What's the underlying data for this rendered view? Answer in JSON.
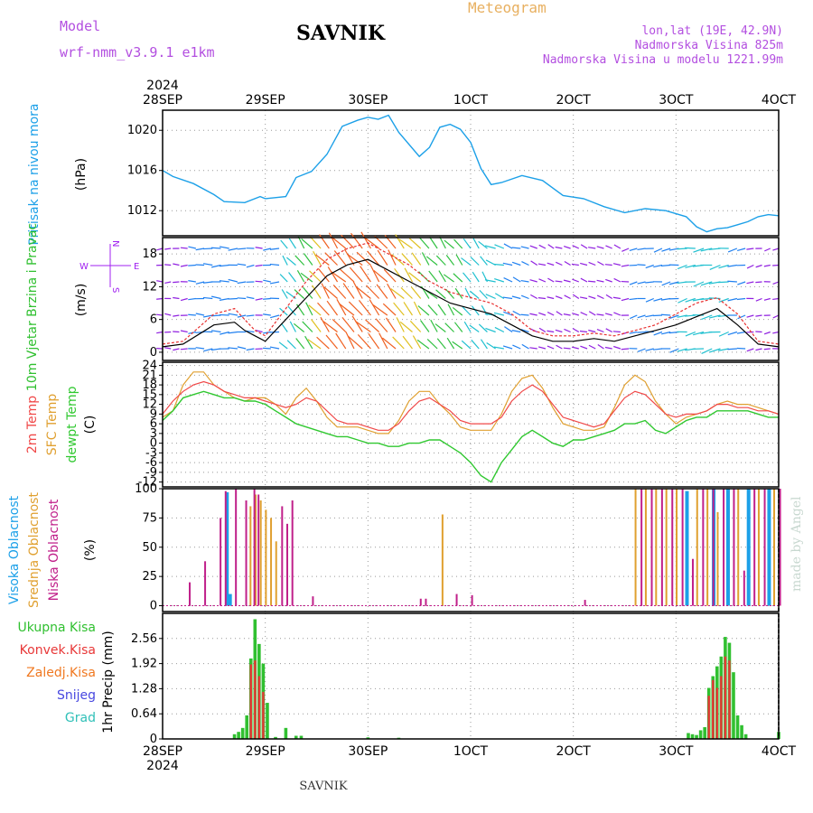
{
  "header": {
    "model_label": "Model",
    "model_name": "wrf-nmm_v3.9.1 e1km",
    "title": "SAVNIK",
    "meteogram_label": "Meteogram",
    "coords": "lon,lat (19E, 42.9N)",
    "altitude": "Nadmorska Visina 825m",
    "model_altitude": "Nadmorska Visina u modelu 1221.99m",
    "bottom_label": "SAVNIK",
    "credit": "made by Angel",
    "year_top": "2024",
    "year_bottom": "2024"
  },
  "colors": {
    "pressure": "#1ca0e8",
    "temp2m": "#f04848",
    "sfc": "#e0a030",
    "dewpt": "#30c830",
    "high_cloud": "#1ca0e8",
    "mid_cloud": "#e0a030",
    "low_cloud": "#c0208a",
    "total_precip": "#30c030",
    "conv_precip": "#e83838",
    "frz_precip": "#f07820",
    "snow": "#4848e0",
    "hail": "#30c0b8",
    "wind_label": "#30c030",
    "direction_label": "#a020f0"
  },
  "chart_data": [
    {
      "type": "line",
      "panel": "pressure",
      "ylabel_left": "Pritisak na nivou mora",
      "ylabel_unit": "(hPa)",
      "x_ticks": [
        "28SEP",
        "29SEP",
        "30SEP",
        "1OCT",
        "2OCT",
        "3OCT",
        "4OCT"
      ],
      "y_ticks": [
        "1020",
        "1016",
        "1012"
      ],
      "ylim": [
        1009.5,
        1022
      ],
      "grid": true,
      "series": [
        {
          "x": [
            0,
            0.1,
            0.3,
            0.5,
            0.6,
            0.8,
            0.95,
            1.0,
            1.2,
            1.3,
            1.45,
            1.6,
            1.75,
            1.9,
            2.0,
            2.1,
            2.2,
            2.3,
            2.5,
            2.6,
            2.7,
            2.8,
            2.9,
            3.0,
            3.1,
            3.2,
            3.3,
            3.5,
            3.7,
            3.9,
            4.1,
            4.3,
            4.5,
            4.7,
            4.9,
            5.1,
            5.2,
            5.3,
            5.4,
            5.5,
            5.6,
            5.7,
            5.8,
            5.9,
            6.0
          ],
          "y": [
            1016,
            1015.4,
            1014.7,
            1013.6,
            1012.9,
            1012.8,
            1013.4,
            1013.2,
            1013.4,
            1015.3,
            1015.9,
            1017.6,
            1020.4,
            1021.0,
            1021.3,
            1021.1,
            1021.5,
            1019.8,
            1017.4,
            1018.3,
            1020.3,
            1020.6,
            1020.1,
            1018.8,
            1016.2,
            1014.6,
            1014.8,
            1015.5,
            1015.0,
            1013.5,
            1013.2,
            1012.4,
            1011.8,
            1012.2,
            1012.0,
            1011.4,
            1010.4,
            1009.9,
            1010.2,
            1010.3,
            1010.6,
            1010.9,
            1011.4,
            1011.6,
            1011.5
          ]
        }
      ]
    },
    {
      "type": "line",
      "panel": "wind",
      "ylabel_left": "10m Vjetar Brzina i Pravac",
      "ylabel_unit": "(m/s)",
      "compass": {
        "w": "W",
        "e": "E",
        "n": "N",
        "s": "S"
      },
      "y_ticks": [
        "18",
        "12",
        "6",
        "0"
      ],
      "ylim": [
        -1.5,
        21
      ],
      "grid": true,
      "series": [
        {
          "name": "mean",
          "x": [
            0,
            0.2,
            0.5,
            0.7,
            0.8,
            0.9,
            1.0,
            1.2,
            1.4,
            1.6,
            1.8,
            2.0,
            2.2,
            2.4,
            2.6,
            2.8,
            3.0,
            3.2,
            3.4,
            3.6,
            3.8,
            4.0,
            4.2,
            4.4,
            4.6,
            4.8,
            5.0,
            5.2,
            5.4,
            5.6,
            5.8,
            6.0
          ],
          "y": [
            1,
            1.5,
            5,
            5.5,
            4,
            3,
            2,
            6,
            10,
            14,
            16,
            17,
            15,
            13,
            11,
            9,
            8,
            7,
            5,
            3,
            2,
            2,
            2.5,
            2,
            3,
            4,
            5,
            6.5,
            8,
            5,
            1.5,
            1
          ]
        },
        {
          "name": "gust",
          "x": [
            0,
            0.2,
            0.5,
            0.7,
            0.8,
            0.9,
            1.0,
            1.2,
            1.4,
            1.6,
            1.8,
            2.0,
            2.2,
            2.4,
            2.6,
            2.8,
            3.0,
            3.2,
            3.4,
            3.6,
            3.8,
            4.0,
            4.2,
            4.4,
            4.6,
            4.8,
            5.0,
            5.2,
            5.4,
            5.6,
            5.8,
            6.0
          ],
          "y": [
            1.5,
            2,
            7,
            8,
            6,
            4,
            3,
            8,
            13,
            17,
            19,
            20,
            18,
            16,
            13,
            11,
            10,
            9,
            7,
            4,
            3,
            3,
            3.5,
            3,
            4,
            5,
            7,
            9,
            10,
            7,
            2,
            1.5
          ]
        }
      ]
    },
    {
      "type": "line",
      "panel": "temperature",
      "ylabel_lines": [
        "2m Temp",
        "SFC Temp",
        "dewpt Temp"
      ],
      "ylabel_unit": "(C)",
      "y_ticks": [
        "24",
        "21",
        "18",
        "15",
        "12",
        "9",
        "6",
        "3",
        "0",
        "-3",
        "-6",
        "-9",
        "-12"
      ],
      "ylim": [
        -13.5,
        25
      ],
      "grid": true,
      "series": [
        {
          "name": "2m Temp",
          "x": [
            0,
            0.1,
            0.2,
            0.3,
            0.4,
            0.5,
            0.6,
            0.7,
            0.8,
            0.9,
            1.0,
            1.1,
            1.2,
            1.3,
            1.4,
            1.5,
            1.6,
            1.7,
            1.8,
            1.9,
            2.0,
            2.1,
            2.2,
            2.3,
            2.4,
            2.5,
            2.6,
            2.7,
            2.8,
            2.9,
            3.0,
            3.1,
            3.2,
            3.3,
            3.4,
            3.5,
            3.6,
            3.7,
            3.8,
            3.9,
            4.0,
            4.1,
            4.2,
            4.3,
            4.4,
            4.5,
            4.6,
            4.7,
            4.8,
            4.9,
            5.0,
            5.1,
            5.2,
            5.3,
            5.4,
            5.5,
            5.6,
            5.7,
            5.8,
            5.9,
            6.0
          ],
          "y": [
            9,
            13,
            16,
            18,
            19,
            18,
            16,
            15,
            14,
            14,
            13,
            12,
            11,
            12,
            14,
            13,
            10,
            7,
            6,
            6,
            5,
            4,
            4,
            6,
            10,
            13,
            14,
            12,
            10,
            7,
            6,
            6,
            6,
            8,
            13,
            16,
            18,
            16,
            12,
            8,
            7,
            6,
            5,
            6,
            10,
            14,
            16,
            15,
            12,
            9,
            8,
            9,
            9,
            10,
            12,
            12,
            11,
            11,
            10,
            10,
            9
          ]
        },
        {
          "name": "SFC Temp",
          "x": [
            0,
            0.1,
            0.2,
            0.3,
            0.4,
            0.5,
            0.6,
            0.7,
            0.8,
            0.9,
            1.0,
            1.1,
            1.2,
            1.3,
            1.4,
            1.5,
            1.6,
            1.7,
            1.8,
            1.9,
            2.0,
            2.1,
            2.2,
            2.3,
            2.4,
            2.5,
            2.6,
            2.7,
            2.8,
            2.9,
            3.0,
            3.1,
            3.2,
            3.3,
            3.4,
            3.5,
            3.6,
            3.7,
            3.8,
            3.9,
            4.0,
            4.1,
            4.2,
            4.3,
            4.4,
            4.5,
            4.6,
            4.7,
            4.8,
            4.9,
            5.0,
            5.1,
            5.2,
            5.3,
            5.4,
            5.5,
            5.6,
            5.7,
            5.8,
            5.9,
            6.0
          ],
          "y": [
            8,
            10,
            18,
            22,
            22,
            18,
            16,
            14,
            13,
            14,
            14,
            12,
            9,
            14,
            17,
            13,
            8,
            5,
            5,
            5,
            4,
            3,
            3,
            7,
            13,
            16,
            16,
            12,
            9,
            5,
            4,
            4,
            4,
            9,
            16,
            20,
            21,
            17,
            11,
            6,
            5,
            4,
            4,
            5,
            11,
            18,
            21,
            19,
            13,
            9,
            6,
            8,
            9,
            10,
            12,
            13,
            12,
            12,
            11,
            10,
            9
          ]
        },
        {
          "name": "dewpt Temp",
          "x": [
            0,
            0.1,
            0.2,
            0.3,
            0.4,
            0.5,
            0.6,
            0.7,
            0.8,
            0.9,
            1.0,
            1.1,
            1.2,
            1.3,
            1.4,
            1.5,
            1.6,
            1.7,
            1.8,
            1.9,
            2.0,
            2.1,
            2.2,
            2.3,
            2.4,
            2.5,
            2.6,
            2.7,
            2.8,
            2.9,
            3.0,
            3.1,
            3.2,
            3.3,
            3.4,
            3.5,
            3.6,
            3.7,
            3.8,
            3.9,
            4.0,
            4.1,
            4.2,
            4.3,
            4.4,
            4.5,
            4.6,
            4.7,
            4.8,
            4.9,
            5.0,
            5.1,
            5.2,
            5.3,
            5.4,
            5.5,
            5.6,
            5.7,
            5.8,
            5.9,
            6.0
          ],
          "y": [
            7,
            10,
            14,
            15,
            16,
            15,
            14,
            14,
            13,
            13,
            12,
            10,
            8,
            6,
            5,
            4,
            3,
            2,
            2,
            1,
            0,
            0,
            -1,
            -1,
            0,
            0,
            1,
            1,
            -1,
            -3,
            -6,
            -10,
            -12,
            -6,
            -2,
            2,
            4,
            2,
            0,
            -1,
            1,
            1,
            2,
            3,
            4,
            6,
            6,
            7,
            4,
            3,
            5,
            7,
            8,
            8,
            10,
            10,
            10,
            10,
            9,
            8,
            8
          ]
        }
      ]
    },
    {
      "type": "bar",
      "panel": "clouds",
      "ylabel_lines": [
        "Visoka Oblacnost",
        "Srednja Oblacnost",
        "Niska Oblacnost"
      ],
      "ylabel_unit": "(%)",
      "y_ticks": [
        "100",
        "75",
        "50",
        "25",
        "0"
      ],
      "ylim": [
        -5,
        100
      ],
      "grid": true,
      "series": [
        {
          "name": "high",
          "x": [
            0.62,
            0.65,
            5.1,
            5.36,
            5.5,
            5.7,
            5.9
          ],
          "values": [
            97,
            10,
            98,
            100,
            100,
            100,
            100
          ]
        },
        {
          "name": "mid",
          "x": [
            0.85,
            0.9,
            0.95,
            1.0,
            1.05,
            1.1,
            2.72,
            4.6,
            4.7,
            4.8,
            4.9,
            5.0,
            5.2,
            5.3,
            5.4,
            5.6,
            5.8,
            5.95
          ],
          "values": [
            85,
            95,
            90,
            82,
            75,
            55,
            78,
            100,
            100,
            100,
            100,
            100,
            100,
            100,
            80,
            100,
            100,
            100
          ]
        },
        {
          "name": "low",
          "x": [
            0.25,
            0.4,
            0.55,
            0.6,
            0.7,
            0.8,
            0.88,
            0.92,
            1.15,
            1.2,
            1.25,
            1.45,
            2.5,
            2.55,
            2.85,
            3.0,
            4.1,
            4.65,
            4.75,
            4.85,
            4.95,
            5.05,
            5.15,
            5.25,
            5.35,
            5.45,
            5.55,
            5.65,
            5.75,
            5.85,
            6.0
          ],
          "values": [
            20,
            38,
            75,
            98,
            100,
            90,
            100,
            95,
            85,
            70,
            90,
            8,
            6,
            6,
            10,
            9,
            5,
            100,
            100,
            100,
            100,
            100,
            40,
            100,
            100,
            100,
            100,
            30,
            100,
            100,
            100
          ]
        }
      ]
    },
    {
      "type": "bar",
      "panel": "precip",
      "ylabel_lines": [
        "Ukupna Kisa",
        "Konvek.Kisa",
        "Zaledj.Kisa",
        "Snijeg",
        "Grad"
      ],
      "ylabel_unit": "1hr Precip (mm)",
      "y_ticks": [
        "2.56",
        "1.92",
        "1.28",
        "0.64",
        "0"
      ],
      "ylim": [
        0,
        3.2
      ],
      "grid": true,
      "series": [
        {
          "name": "Ukupna Kisa",
          "x": [
            0.7,
            0.74,
            0.78,
            0.82,
            0.86,
            0.9,
            0.94,
            0.98,
            1.02,
            1.1,
            1.2,
            1.3,
            1.35,
            2.0,
            2.3,
            5.12,
            5.16,
            5.2,
            5.24,
            5.28,
            5.32,
            5.36,
            5.4,
            5.44,
            5.48,
            5.52,
            5.56,
            5.6,
            5.64,
            5.68,
            6.0
          ],
          "values": [
            0.12,
            0.18,
            0.28,
            0.6,
            2.05,
            3.05,
            2.42,
            1.92,
            0.92,
            0.05,
            0.28,
            0.08,
            0.08,
            0.04,
            0.03,
            0.15,
            0.12,
            0.1,
            0.22,
            0.3,
            1.3,
            1.6,
            1.85,
            2.1,
            2.6,
            2.45,
            1.7,
            0.6,
            0.35,
            0.12,
            0.18
          ]
        },
        {
          "name": "Konvek.Kisa",
          "x": [
            0.86,
            0.9,
            0.94,
            0.98,
            5.32,
            5.36,
            5.4,
            5.44,
            5.48,
            5.52
          ],
          "values": [
            1.9,
            2.0,
            1.6,
            1.2,
            1.1,
            1.5,
            1.3,
            1.6,
            2.1,
            2.0
          ]
        }
      ]
    }
  ]
}
